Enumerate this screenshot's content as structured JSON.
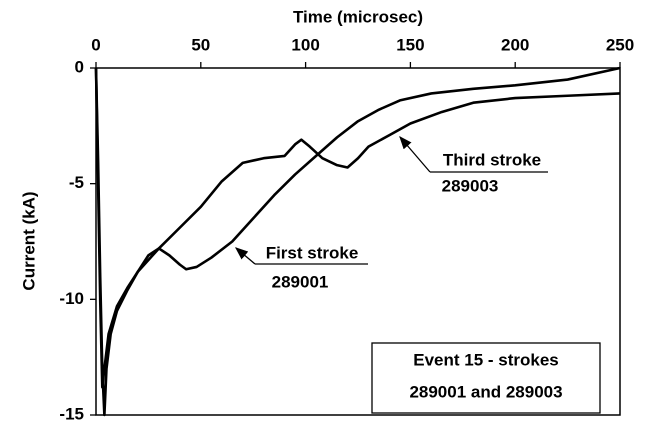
{
  "chart_data": {
    "type": "line",
    "x_label": "Time (microsec)",
    "y_label": "Current (kA)",
    "xlim": [
      0,
      250
    ],
    "xticks": [
      0,
      50,
      100,
      150,
      200,
      250
    ],
    "ylim": [
      -15,
      0
    ],
    "yticks": [
      0,
      -5,
      -10,
      -15
    ],
    "annotations": [
      "Event 15 - strokes",
      "289001 and 289003"
    ],
    "series": [
      {
        "name": "First stroke",
        "id": "289001",
        "color": "#000000",
        "x": [
          0,
          1,
          2,
          3,
          4,
          5,
          7,
          10,
          15,
          20,
          25,
          30,
          35,
          40,
          43,
          48,
          55,
          65,
          75,
          85,
          95,
          105,
          115,
          125,
          135,
          145,
          160,
          180,
          200,
          225,
          250
        ],
        "values": [
          0,
          -4,
          -9,
          -13,
          -15,
          -13,
          -11.5,
          -10.5,
          -9.6,
          -8.8,
          -8.1,
          -7.8,
          -8.1,
          -8.5,
          -8.7,
          -8.6,
          -8.2,
          -7.5,
          -6.5,
          -5.5,
          -4.6,
          -3.8,
          -3,
          -2.3,
          -1.8,
          -1.4,
          -1.1,
          -0.9,
          -0.75,
          -0.5,
          0
        ]
      },
      {
        "name": "Third stroke",
        "id": "289003",
        "color": "#000000",
        "x": [
          0,
          1,
          2,
          3,
          4,
          6,
          10,
          15,
          20,
          30,
          40,
          50,
          60,
          70,
          80,
          90,
          95,
          98,
          102,
          108,
          115,
          120,
          125,
          130,
          140,
          150,
          165,
          180,
          200,
          225,
          250
        ],
        "values": [
          0,
          -5,
          -10,
          -13.8,
          -13,
          -11.5,
          -10.3,
          -9.5,
          -8.8,
          -7.8,
          -6.9,
          -6,
          -4.9,
          -4.1,
          -3.9,
          -3.8,
          -3.3,
          -3.1,
          -3.4,
          -3.9,
          -4.2,
          -4.3,
          -3.9,
          -3.4,
          -2.9,
          -2.4,
          -1.9,
          -1.5,
          -1.3,
          -1.2,
          -1.1
        ]
      }
    ]
  }
}
